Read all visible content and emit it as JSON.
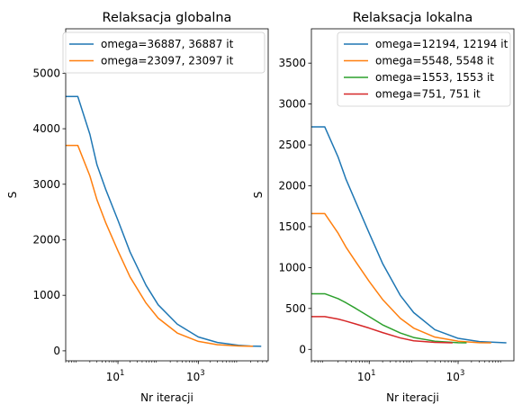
{
  "chart_data": [
    {
      "type": "line",
      "title": "Relaksacja globalna",
      "xlabel": "Nr iteracji",
      "ylabel": "S",
      "xscale": "log",
      "xlim": [
        0.5,
        55000
      ],
      "ylim": [
        -180,
        5800
      ],
      "xticks": [
        {
          "value": 10,
          "base": "10",
          "exp": "1"
        },
        {
          "value": 1000,
          "base": "10",
          "exp": "3"
        }
      ],
      "yticks": [
        0,
        1000,
        2000,
        3000,
        4000,
        5000
      ],
      "legend": "top-right",
      "grid": false,
      "series": [
        {
          "name": "omega=36887, 36887 it",
          "color": "#1f77b4",
          "points": [
            [
              0.5,
              4580
            ],
            [
              1,
              4580
            ],
            [
              2,
              3900
            ],
            [
              3,
              3350
            ],
            [
              5,
              2900
            ],
            [
              10,
              2350
            ],
            [
              20,
              1780
            ],
            [
              50,
              1180
            ],
            [
              100,
              830
            ],
            [
              300,
              480
            ],
            [
              1000,
              250
            ],
            [
              3000,
              150
            ],
            [
              10000,
              100
            ],
            [
              20000,
              85
            ],
            [
              36887,
              82
            ]
          ]
        },
        {
          "name": "omega=23097, 23097 it",
          "color": "#ff7f0e",
          "points": [
            [
              0.5,
              3700
            ],
            [
              1,
              3700
            ],
            [
              2,
              3150
            ],
            [
              3,
              2720
            ],
            [
              5,
              2300
            ],
            [
              10,
              1800
            ],
            [
              20,
              1330
            ],
            [
              50,
              860
            ],
            [
              100,
              590
            ],
            [
              300,
              320
            ],
            [
              1000,
              170
            ],
            [
              3000,
              110
            ],
            [
              10000,
              88
            ],
            [
              23097,
              82
            ]
          ]
        }
      ]
    },
    {
      "type": "line",
      "title": "Relaksacja lokalna",
      "xlabel": "Nr iteracji",
      "ylabel": "S",
      "xscale": "log",
      "xlim": [
        0.5,
        18000
      ],
      "ylim": [
        -140,
        3920
      ],
      "xticks": [
        {
          "value": 10,
          "base": "10",
          "exp": "1"
        },
        {
          "value": 1000,
          "base": "10",
          "exp": "3"
        }
      ],
      "yticks": [
        0,
        500,
        1000,
        1500,
        2000,
        2500,
        3000,
        3500
      ],
      "legend": "top-right",
      "grid": false,
      "series": [
        {
          "name": "omega=12194, 12194 it",
          "color": "#1f77b4",
          "points": [
            [
              0.5,
              2720
            ],
            [
              1,
              2720
            ],
            [
              2,
              2350
            ],
            [
              3,
              2080
            ],
            [
              5,
              1800
            ],
            [
              10,
              1420
            ],
            [
              20,
              1050
            ],
            [
              50,
              660
            ],
            [
              100,
              450
            ],
            [
              300,
              240
            ],
            [
              1000,
              135
            ],
            [
              3000,
              95
            ],
            [
              12194,
              80
            ]
          ]
        },
        {
          "name": "omega=5548, 5548 it",
          "color": "#ff7f0e",
          "points": [
            [
              0.5,
              1660
            ],
            [
              1,
              1660
            ],
            [
              2,
              1420
            ],
            [
              3,
              1250
            ],
            [
              5,
              1070
            ],
            [
              10,
              830
            ],
            [
              20,
              610
            ],
            [
              50,
              380
            ],
            [
              100,
              260
            ],
            [
              300,
              150
            ],
            [
              1000,
              100
            ],
            [
              3000,
              82
            ],
            [
              5548,
              80
            ]
          ]
        },
        {
          "name": "omega=1553, 1553 it",
          "color": "#2ca02c",
          "points": [
            [
              0.5,
              680
            ],
            [
              1,
              680
            ],
            [
              2,
              620
            ],
            [
              3,
              570
            ],
            [
              5,
              500
            ],
            [
              10,
              400
            ],
            [
              20,
              300
            ],
            [
              50,
              200
            ],
            [
              100,
              145
            ],
            [
              300,
              100
            ],
            [
              1000,
              82
            ],
            [
              1553,
              80
            ]
          ]
        },
        {
          "name": "omega=751, 751 it",
          "color": "#d62728",
          "points": [
            [
              0.5,
              400
            ],
            [
              1,
              400
            ],
            [
              2,
              370
            ],
            [
              3,
              345
            ],
            [
              5,
              310
            ],
            [
              10,
              260
            ],
            [
              20,
              205
            ],
            [
              50,
              140
            ],
            [
              100,
              105
            ],
            [
              300,
              85
            ],
            [
              751,
              80
            ]
          ]
        }
      ]
    }
  ]
}
